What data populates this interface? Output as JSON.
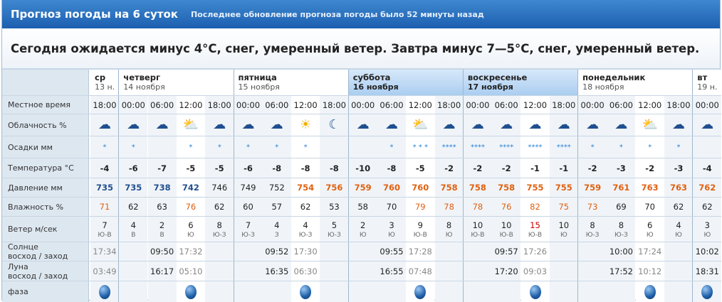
{
  "header": {
    "title": "Прогноз погоды на 6 суток",
    "updated": "Последнее обновление прогноза погоды было 52 минуты назад"
  },
  "headline": "Сегодня ожидается минус 4°С, снег, умеренный ветер. Завтра минус 7—5°С, снег, умеренный ветер.",
  "labels": {
    "time": "Местное время",
    "cloud": "Облачность %",
    "precip": "Осадки мм",
    "temp": "Температура °С",
    "press": "Давление мм",
    "hum": "Влажность %",
    "wind": "Ветер м/сек",
    "sun1": "Солнце",
    "sun2": "восход / заход",
    "moon1": "Луна",
    "moon2": "восход / заход",
    "phase": "фаза"
  },
  "days": [
    {
      "name": "ср",
      "date": "13 н.",
      "hi": false
    },
    {
      "name": "четверг",
      "date": "14 ноября",
      "hi": false
    },
    {
      "name": "пятница",
      "date": "15 ноября",
      "hi": false
    },
    {
      "name": "суббота",
      "date": "16 ноября",
      "hi": true
    },
    {
      "name": "воскресенье",
      "date": "17 ноября",
      "hi": true
    },
    {
      "name": "понедельник",
      "date": "18 ноября",
      "hi": false
    },
    {
      "name": "вт",
      "date": "19 н.",
      "hi": false
    }
  ],
  "columns": [
    {
      "time": "18:00",
      "cloud": "cloudy-icon",
      "precip": "*",
      "temp": "-4",
      "press": "735",
      "pc": "b",
      "hum": "71",
      "hc": "o",
      "wind": "7",
      "dir": "Ю-В"
    },
    {
      "time": "00:00",
      "cloud": "cloudy-icon",
      "precip": "*",
      "temp": "-6",
      "press": "735",
      "pc": "b",
      "hum": "62",
      "hc": "",
      "wind": "4",
      "dir": "В"
    },
    {
      "time": "06:00",
      "cloud": "cloudy-icon",
      "precip": "",
      "temp": "-7",
      "press": "738",
      "pc": "b",
      "hum": "63",
      "hc": "",
      "wind": "2",
      "dir": "В"
    },
    {
      "time": "12:00",
      "cloud": "partly-cloudy-icon",
      "precip": "*",
      "temp": "-5",
      "press": "742",
      "pc": "b",
      "hum": "76",
      "hc": "o",
      "wind": "6",
      "dir": "Ю"
    },
    {
      "time": "18:00",
      "cloud": "cloudy-icon",
      "precip": "*",
      "temp": "-5",
      "press": "746",
      "pc": "",
      "hum": "62",
      "hc": "",
      "wind": "8",
      "dir": "Ю-З"
    },
    {
      "time": "00:00",
      "cloud": "cloudy-icon",
      "precip": "*",
      "temp": "-6",
      "press": "749",
      "pc": "",
      "hum": "60",
      "hc": "",
      "wind": "7",
      "dir": "Ю-З"
    },
    {
      "time": "06:00",
      "cloud": "cloudy-icon",
      "precip": "*",
      "temp": "-8",
      "press": "752",
      "pc": "",
      "hum": "57",
      "hc": "",
      "wind": "4",
      "dir": "З"
    },
    {
      "time": "12:00",
      "cloud": "sunny-icon",
      "precip": "*",
      "temp": "-8",
      "press": "754",
      "pc": "o",
      "hum": "62",
      "hc": "",
      "wind": "4",
      "dir": "Ю-З"
    },
    {
      "time": "18:00",
      "cloud": "night-cloud-icon",
      "precip": "",
      "temp": "-8",
      "press": "756",
      "pc": "o",
      "hum": "53",
      "hc": "",
      "wind": "5",
      "dir": "Ю-З"
    },
    {
      "time": "00:00",
      "cloud": "cloudy-icon",
      "precip": "",
      "temp": "-10",
      "press": "759",
      "pc": "o",
      "hum": "58",
      "hc": "",
      "wind": "2",
      "dir": "Ю"
    },
    {
      "time": "06:00",
      "cloud": "cloudy-icon",
      "precip": "*",
      "temp": "-8",
      "press": "760",
      "pc": "o",
      "hum": "70",
      "hc": "",
      "wind": "3",
      "dir": "Ю"
    },
    {
      "time": "12:00",
      "cloud": "partly-cloudy-icon",
      "precip": "* * *",
      "temp": "-5",
      "press": "760",
      "pc": "o",
      "hum": "79",
      "hc": "o",
      "wind": "9",
      "dir": "Ю-В"
    },
    {
      "time": "18:00",
      "cloud": "cloudy-icon",
      "precip": "****",
      "temp": "-2",
      "press": "758",
      "pc": "o",
      "hum": "78",
      "hc": "o",
      "wind": "8",
      "dir": "Ю"
    },
    {
      "time": "00:00",
      "cloud": "cloudy-icon",
      "precip": "****",
      "temp": "-2",
      "press": "758",
      "pc": "o",
      "hum": "78",
      "hc": "o",
      "wind": "10",
      "dir": "Ю-В"
    },
    {
      "time": "06:00",
      "cloud": "cloudy-icon",
      "precip": "****",
      "temp": "-2",
      "press": "758",
      "pc": "o",
      "hum": "76",
      "hc": "o",
      "wind": "10",
      "dir": "Ю-В"
    },
    {
      "time": "12:00",
      "cloud": "cloudy-icon",
      "precip": "****",
      "temp": "-1",
      "press": "755",
      "pc": "o",
      "hum": "82",
      "hc": "o",
      "wind": "15",
      "dir": "Ю-В",
      "wr": true
    },
    {
      "time": "18:00",
      "cloud": "cloudy-icon",
      "precip": "****",
      "temp": "-1",
      "press": "755",
      "pc": "o",
      "hum": "75",
      "hc": "o",
      "wind": "10",
      "dir": "Ю"
    },
    {
      "time": "00:00",
      "cloud": "cloudy-icon",
      "precip": "*",
      "temp": "-2",
      "press": "759",
      "pc": "o",
      "hum": "73",
      "hc": "o",
      "wind": "8",
      "dir": "Ю-З"
    },
    {
      "time": "06:00",
      "cloud": "cloudy-icon",
      "precip": "*",
      "temp": "-3",
      "press": "761",
      "pc": "o",
      "hum": "69",
      "hc": "",
      "wind": "8",
      "dir": "Ю-З"
    },
    {
      "time": "12:00",
      "cloud": "partly-cloudy-icon",
      "precip": "*",
      "temp": "-2",
      "press": "763",
      "pc": "o",
      "hum": "70",
      "hc": "",
      "wind": "6",
      "dir": "Ю"
    },
    {
      "time": "18:00",
      "cloud": "cloudy-icon",
      "precip": "*",
      "temp": "-3",
      "press": "763",
      "pc": "o",
      "hum": "62",
      "hc": "",
      "wind": "4",
      "dir": "Ю"
    },
    {
      "time": "00:00",
      "cloud": "cloudy-icon",
      "precip": "",
      "temp": "-4",
      "press": "762",
      "pc": "o",
      "hum": "62",
      "hc": "",
      "wind": "3",
      "dir": "Ю"
    }
  ],
  "sun": [
    {
      "col": 0,
      "v": "17:34",
      "g": true
    },
    {
      "col": 2,
      "v": "09:50"
    },
    {
      "col": 3,
      "v": "17:32",
      "g": true
    },
    {
      "col": 6,
      "v": "09:52"
    },
    {
      "col": 7,
      "v": "17:30",
      "g": true
    },
    {
      "col": 10,
      "v": "09:55"
    },
    {
      "col": 11,
      "v": "17:28",
      "g": true
    },
    {
      "col": 14,
      "v": "09:57"
    },
    {
      "col": 15,
      "v": "17:26",
      "g": true
    },
    {
      "col": 18,
      "v": "10:00"
    },
    {
      "col": 19,
      "v": "17:24",
      "g": true
    },
    {
      "col": 21,
      "v": "10:02"
    }
  ],
  "moon": [
    {
      "col": 0,
      "v": "03:49",
      "g": true
    },
    {
      "col": 2,
      "v": "16:17"
    },
    {
      "col": 3,
      "v": "05:10",
      "g": true
    },
    {
      "col": 6,
      "v": "16:35"
    },
    {
      "col": 7,
      "v": "06:30",
      "g": true
    },
    {
      "col": 10,
      "v": "16:55"
    },
    {
      "col": 11,
      "v": "07:48",
      "g": true
    },
    {
      "col": 14,
      "v": "17:20"
    },
    {
      "col": 15,
      "v": "09:03",
      "g": true
    },
    {
      "col": 18,
      "v": "17:52"
    },
    {
      "col": 19,
      "v": "10:12",
      "g": true
    },
    {
      "col": 21,
      "v": "18:31"
    }
  ],
  "phase": [
    0,
    3,
    7,
    11,
    15,
    19,
    21
  ]
}
